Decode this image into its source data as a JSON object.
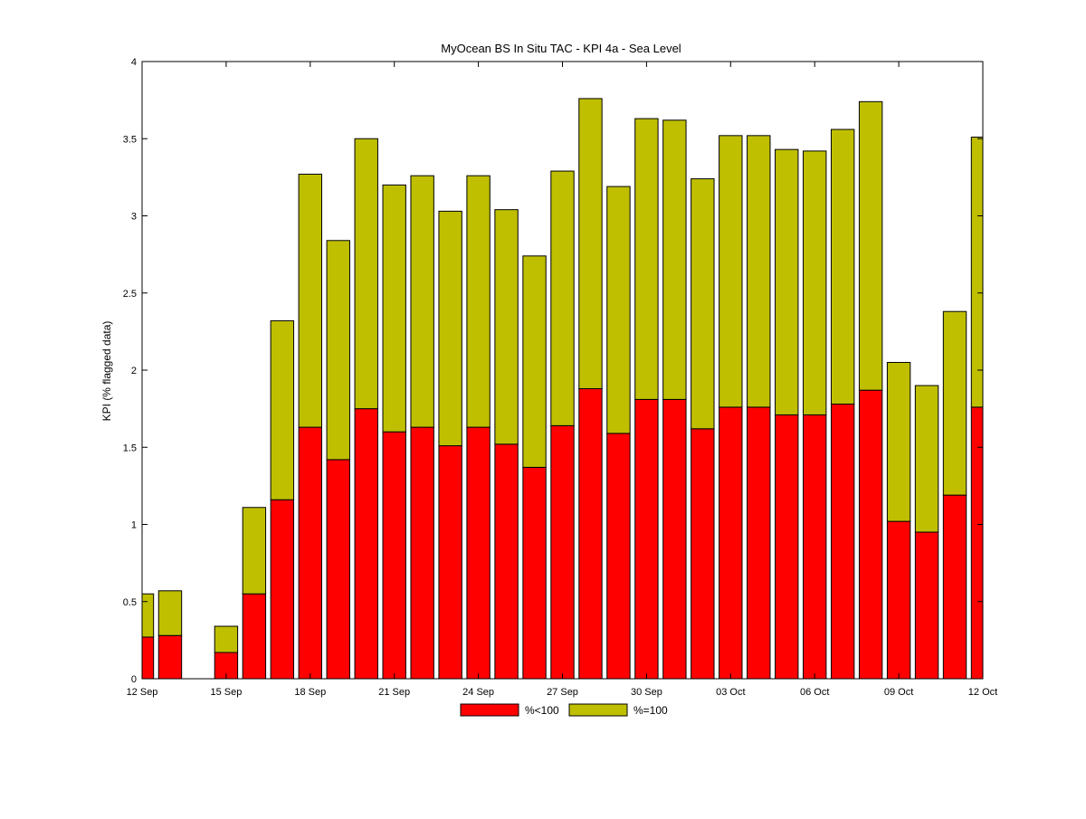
{
  "chart_data": {
    "type": "bar",
    "stacked": true,
    "title": "MyOcean  BS In Situ TAC - KPI 4a - Sea Level",
    "xlabel": "",
    "ylabel": "KPI (% flagged data)",
    "ylim": [
      0,
      4
    ],
    "yticks": [
      0,
      0.5,
      1,
      1.5,
      2,
      2.5,
      3,
      3.5,
      4
    ],
    "ytick_labels": [
      "0",
      "0.5",
      "1",
      "1.5",
      "2",
      "2.5",
      "3",
      "3.5",
      "4"
    ],
    "xlim": [
      "12 Sep",
      "12 Oct"
    ],
    "xtick_labels": [
      "12 Sep",
      "15 Sep",
      "18 Sep",
      "21 Sep",
      "24 Sep",
      "27 Sep",
      "30 Sep",
      "03 Oct",
      "06 Oct",
      "09 Oct",
      "12 Oct"
    ],
    "categories": [
      "12 Sep",
      "13 Sep",
      "14 Sep",
      "15 Sep",
      "16 Sep",
      "17 Sep",
      "18 Sep",
      "19 Sep",
      "20 Sep",
      "21 Sep",
      "22 Sep",
      "23 Sep",
      "24 Sep",
      "25 Sep",
      "26 Sep",
      "27 Sep",
      "28 Sep",
      "29 Sep",
      "30 Sep",
      "01 Oct",
      "02 Oct",
      "03 Oct",
      "04 Oct",
      "05 Oct",
      "06 Oct",
      "07 Oct",
      "08 Oct",
      "09 Oct",
      "10 Oct",
      "11 Oct",
      "12 Oct"
    ],
    "series": [
      {
        "name": "%<100",
        "color": "#ff0000",
        "values": [
          0.27,
          0.28,
          0,
          0.17,
          0.55,
          1.16,
          1.63,
          1.42,
          1.75,
          1.6,
          1.63,
          1.51,
          1.63,
          1.52,
          1.37,
          1.64,
          1.88,
          1.59,
          1.81,
          1.81,
          1.62,
          1.76,
          1.76,
          1.71,
          1.71,
          1.78,
          1.87,
          1.02,
          0.95,
          1.19,
          1.76
        ]
      },
      {
        "name": "%=100",
        "color": "#bfbf00",
        "values": [
          0.28,
          0.29,
          0,
          0.17,
          0.56,
          1.16,
          1.64,
          1.42,
          1.75,
          1.6,
          1.63,
          1.52,
          1.63,
          1.52,
          1.37,
          1.65,
          1.88,
          1.6,
          1.82,
          1.81,
          1.62,
          1.76,
          1.76,
          1.72,
          1.71,
          1.78,
          1.87,
          1.03,
          0.95,
          1.19,
          1.75
        ]
      }
    ],
    "grid": false,
    "legend_position": "bottom-center"
  }
}
